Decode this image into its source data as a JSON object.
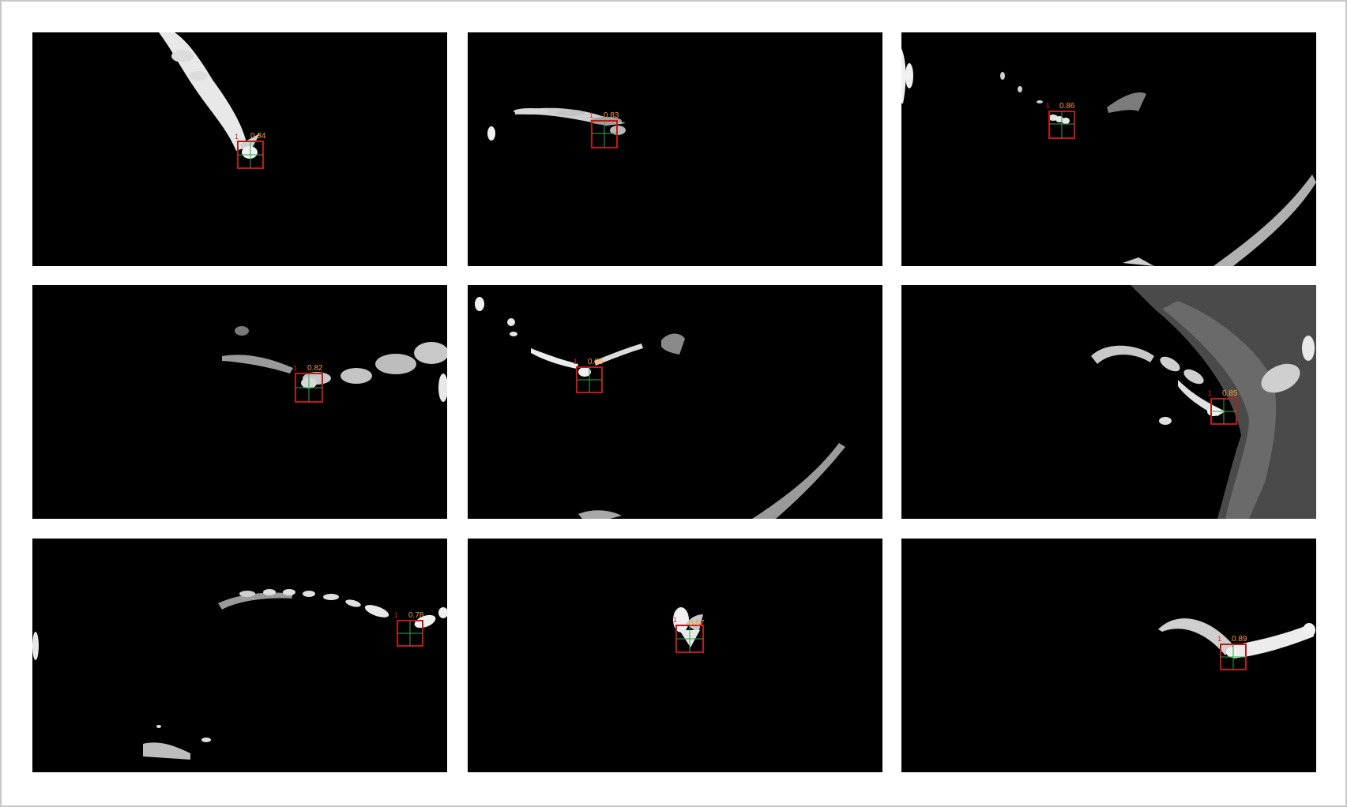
{
  "colors": {
    "background": "#000000",
    "frame": "#c8c8c8",
    "box": "#c01818",
    "score": "#ff9a2e",
    "crosshair": "#2ea84a",
    "mask": "#ececec"
  },
  "panels": [
    {
      "name": "panel-1",
      "id": "1",
      "score": "0.84"
    },
    {
      "name": "panel-2",
      "id": "1",
      "score": "0.83"
    },
    {
      "name": "panel-3",
      "id": "1",
      "score": "0.86"
    },
    {
      "name": "panel-4",
      "id": "1",
      "score": "0.82"
    },
    {
      "name": "panel-5",
      "id": "1",
      "score": "0.86"
    },
    {
      "name": "panel-6",
      "id": "1",
      "score": "0.85"
    },
    {
      "name": "panel-7",
      "id": "1",
      "score": "0.78"
    },
    {
      "name": "panel-8",
      "id": "1",
      "score": "0.87"
    },
    {
      "name": "panel-9",
      "id": "1",
      "score": "0.89"
    }
  ]
}
